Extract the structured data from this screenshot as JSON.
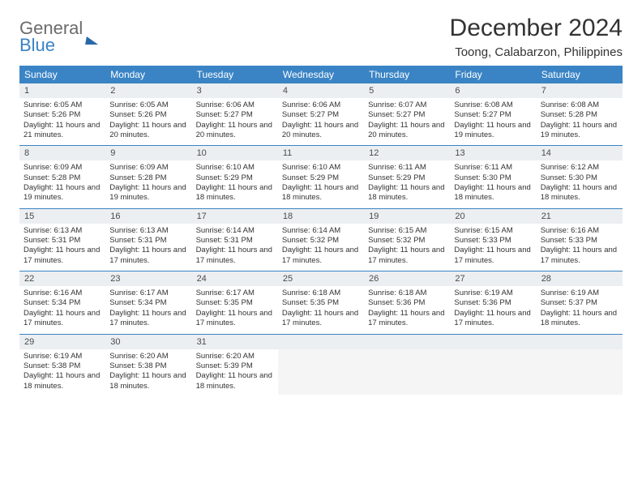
{
  "brand": {
    "general": "General",
    "blue": "Blue"
  },
  "title": "December 2024",
  "location": "Toong, Calabarzon, Philippines",
  "colors": {
    "header_bg": "#3a84c5",
    "header_text": "#ffffff",
    "daynum_bg": "#eceff1",
    "border": "#3a84c5",
    "text": "#333333",
    "logo_gray": "#6b6b6b",
    "logo_blue": "#3b82c4"
  },
  "weekdays": [
    "Sunday",
    "Monday",
    "Tuesday",
    "Wednesday",
    "Thursday",
    "Friday",
    "Saturday"
  ],
  "days": [
    {
      "n": 1,
      "sr": "6:05 AM",
      "ss": "5:26 PM",
      "dl": "11 hours and 21 minutes."
    },
    {
      "n": 2,
      "sr": "6:05 AM",
      "ss": "5:26 PM",
      "dl": "11 hours and 20 minutes."
    },
    {
      "n": 3,
      "sr": "6:06 AM",
      "ss": "5:27 PM",
      "dl": "11 hours and 20 minutes."
    },
    {
      "n": 4,
      "sr": "6:06 AM",
      "ss": "5:27 PM",
      "dl": "11 hours and 20 minutes."
    },
    {
      "n": 5,
      "sr": "6:07 AM",
      "ss": "5:27 PM",
      "dl": "11 hours and 20 minutes."
    },
    {
      "n": 6,
      "sr": "6:08 AM",
      "ss": "5:27 PM",
      "dl": "11 hours and 19 minutes."
    },
    {
      "n": 7,
      "sr": "6:08 AM",
      "ss": "5:28 PM",
      "dl": "11 hours and 19 minutes."
    },
    {
      "n": 8,
      "sr": "6:09 AM",
      "ss": "5:28 PM",
      "dl": "11 hours and 19 minutes."
    },
    {
      "n": 9,
      "sr": "6:09 AM",
      "ss": "5:28 PM",
      "dl": "11 hours and 19 minutes."
    },
    {
      "n": 10,
      "sr": "6:10 AM",
      "ss": "5:29 PM",
      "dl": "11 hours and 18 minutes."
    },
    {
      "n": 11,
      "sr": "6:10 AM",
      "ss": "5:29 PM",
      "dl": "11 hours and 18 minutes."
    },
    {
      "n": 12,
      "sr": "6:11 AM",
      "ss": "5:29 PM",
      "dl": "11 hours and 18 minutes."
    },
    {
      "n": 13,
      "sr": "6:11 AM",
      "ss": "5:30 PM",
      "dl": "11 hours and 18 minutes."
    },
    {
      "n": 14,
      "sr": "6:12 AM",
      "ss": "5:30 PM",
      "dl": "11 hours and 18 minutes."
    },
    {
      "n": 15,
      "sr": "6:13 AM",
      "ss": "5:31 PM",
      "dl": "11 hours and 17 minutes."
    },
    {
      "n": 16,
      "sr": "6:13 AM",
      "ss": "5:31 PM",
      "dl": "11 hours and 17 minutes."
    },
    {
      "n": 17,
      "sr": "6:14 AM",
      "ss": "5:31 PM",
      "dl": "11 hours and 17 minutes."
    },
    {
      "n": 18,
      "sr": "6:14 AM",
      "ss": "5:32 PM",
      "dl": "11 hours and 17 minutes."
    },
    {
      "n": 19,
      "sr": "6:15 AM",
      "ss": "5:32 PM",
      "dl": "11 hours and 17 minutes."
    },
    {
      "n": 20,
      "sr": "6:15 AM",
      "ss": "5:33 PM",
      "dl": "11 hours and 17 minutes."
    },
    {
      "n": 21,
      "sr": "6:16 AM",
      "ss": "5:33 PM",
      "dl": "11 hours and 17 minutes."
    },
    {
      "n": 22,
      "sr": "6:16 AM",
      "ss": "5:34 PM",
      "dl": "11 hours and 17 minutes."
    },
    {
      "n": 23,
      "sr": "6:17 AM",
      "ss": "5:34 PM",
      "dl": "11 hours and 17 minutes."
    },
    {
      "n": 24,
      "sr": "6:17 AM",
      "ss": "5:35 PM",
      "dl": "11 hours and 17 minutes."
    },
    {
      "n": 25,
      "sr": "6:18 AM",
      "ss": "5:35 PM",
      "dl": "11 hours and 17 minutes."
    },
    {
      "n": 26,
      "sr": "6:18 AM",
      "ss": "5:36 PM",
      "dl": "11 hours and 17 minutes."
    },
    {
      "n": 27,
      "sr": "6:19 AM",
      "ss": "5:36 PM",
      "dl": "11 hours and 17 minutes."
    },
    {
      "n": 28,
      "sr": "6:19 AM",
      "ss": "5:37 PM",
      "dl": "11 hours and 18 minutes."
    },
    {
      "n": 29,
      "sr": "6:19 AM",
      "ss": "5:38 PM",
      "dl": "11 hours and 18 minutes."
    },
    {
      "n": 30,
      "sr": "6:20 AM",
      "ss": "5:38 PM",
      "dl": "11 hours and 18 minutes."
    },
    {
      "n": 31,
      "sr": "6:20 AM",
      "ss": "5:39 PM",
      "dl": "11 hours and 18 minutes."
    }
  ],
  "labels": {
    "sunrise": "Sunrise:",
    "sunset": "Sunset:",
    "daylight": "Daylight:"
  },
  "layout": {
    "first_weekday_index": 0,
    "trailing_empty": 4
  }
}
